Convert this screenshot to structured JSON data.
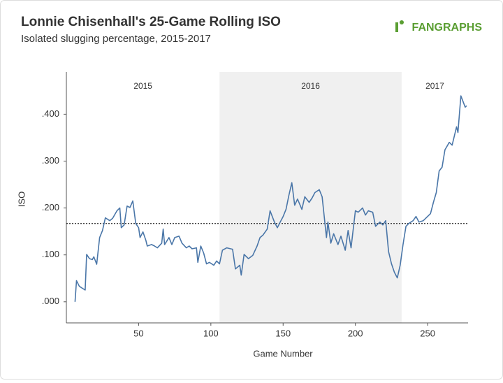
{
  "chart_data": {
    "type": "line",
    "title": "Lonnie Chisenhall's 25-Game Rolling ISO",
    "subtitle": "Isolated slugging percentage, 2015-2017",
    "logo": "FANGRAPHS",
    "x_label": "Game Number",
    "y_label": "ISO",
    "xlim": [
      0,
      278
    ],
    "xticks": [
      50,
      100,
      150,
      200,
      250
    ],
    "ylim": [
      -0.045,
      0.49
    ],
    "yticks": [
      {
        "value": 0,
        "label": ".000"
      },
      {
        "value": 0.1,
        "label": ".100"
      },
      {
        "value": 0.2,
        "label": ".200"
      },
      {
        "value": 0.3,
        "label": ".300"
      },
      {
        "value": 0.4,
        "label": ".400"
      }
    ],
    "reference_line": 0.167,
    "regions": [
      {
        "label": "2015",
        "start": 0,
        "end": 106,
        "shaded": false
      },
      {
        "label": "2016",
        "start": 106,
        "end": 232,
        "shaded": true
      },
      {
        "label": "2017",
        "start": 232,
        "end": 278,
        "shaded": false
      }
    ],
    "x": [
      6,
      7,
      9,
      13,
      14,
      16,
      18,
      19,
      21,
      23,
      25,
      27,
      30,
      32,
      35,
      37,
      38,
      40,
      42,
      44,
      46,
      48,
      50,
      51,
      53,
      55,
      56,
      59,
      61,
      63,
      66,
      67,
      68,
      71,
      73,
      75,
      78,
      80,
      83,
      85,
      87,
      90,
      91,
      93,
      95,
      97,
      99,
      102,
      104,
      106,
      108,
      111,
      115,
      117,
      120,
      121,
      123,
      126,
      129,
      132,
      134,
      136,
      139,
      141,
      144,
      146,
      148,
      150,
      152,
      154,
      156,
      158,
      160,
      163,
      165,
      168,
      170,
      172,
      175,
      177,
      180,
      181,
      183,
      185,
      188,
      190,
      193,
      195,
      197,
      200,
      202,
      205,
      207,
      209,
      212,
      214,
      217,
      219,
      221,
      223,
      225,
      227,
      229,
      231,
      233,
      235,
      237,
      240,
      242,
      244,
      247,
      249,
      252,
      254,
      256,
      258,
      260,
      262,
      265,
      267,
      270,
      271,
      273,
      276,
      277
    ],
    "series": [
      {
        "name": "ISO",
        "color": "#4a76a8",
        "values": [
          0,
          0.045,
          0.033,
          0.025,
          0.101,
          0.092,
          0.09,
          0.096,
          0.08,
          0.137,
          0.152,
          0.179,
          0.173,
          0.178,
          0.194,
          0.2,
          0.158,
          0.164,
          0.204,
          0.201,
          0.215,
          0.167,
          0.158,
          0.137,
          0.149,
          0.131,
          0.119,
          0.122,
          0.119,
          0.115,
          0.125,
          0.155,
          0.122,
          0.137,
          0.122,
          0.137,
          0.14,
          0.125,
          0.115,
          0.119,
          0.113,
          0.115,
          0.084,
          0.119,
          0.104,
          0.081,
          0.084,
          0.078,
          0.087,
          0.081,
          0.11,
          0.115,
          0.112,
          0.07,
          0.078,
          0.057,
          0.101,
          0.092,
          0.099,
          0.119,
          0.137,
          0.142,
          0.155,
          0.194,
          0.17,
          0.158,
          0.17,
          0.182,
          0.197,
          0.227,
          0.254,
          0.206,
          0.219,
          0.197,
          0.224,
          0.212,
          0.221,
          0.233,
          0.239,
          0.224,
          0.137,
          0.17,
          0.125,
          0.145,
          0.122,
          0.14,
          0.11,
          0.152,
          0.115,
          0.194,
          0.191,
          0.2,
          0.185,
          0.194,
          0.191,
          0.161,
          0.17,
          0.164,
          0.173,
          0.107,
          0.081,
          0.063,
          0.051,
          0.078,
          0.122,
          0.161,
          0.167,
          0.173,
          0.182,
          0.17,
          0.173,
          0.179,
          0.188,
          0.212,
          0.233,
          0.279,
          0.287,
          0.324,
          0.34,
          0.334,
          0.373,
          0.361,
          0.439,
          0.415,
          0.418
        ]
      }
    ]
  }
}
